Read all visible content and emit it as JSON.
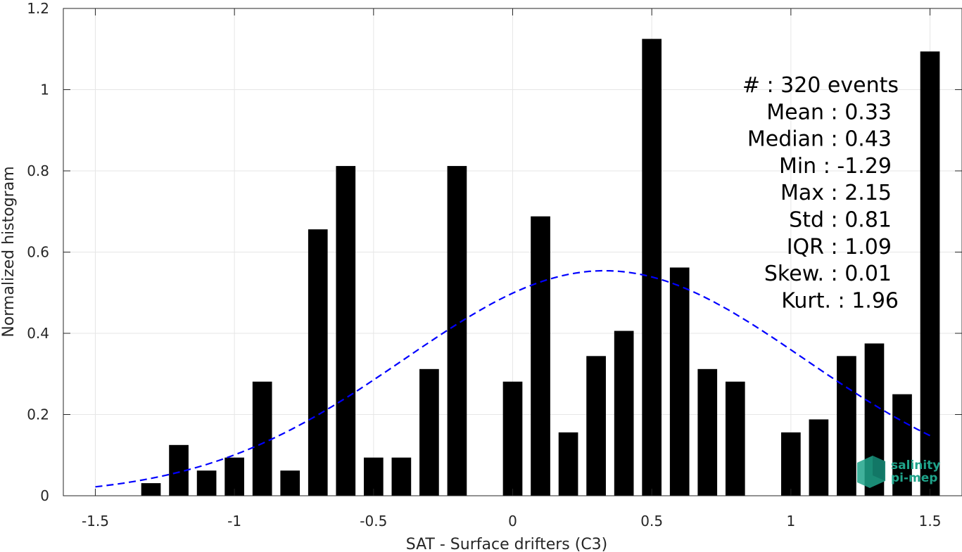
{
  "chart_data": {
    "type": "bar",
    "xlabel": "SAT - Surface drifters (C3)",
    "ylabel": "Normalized histogram",
    "xlim": [
      -1.615,
      1.615
    ],
    "ylim": [
      0,
      1.2
    ],
    "grid": true,
    "x_ticks": [
      -1.5,
      -1,
      -0.5,
      0,
      0.5,
      1,
      1.5
    ],
    "x_tick_labels": [
      "-1.5",
      "-1",
      "-0.5",
      "0",
      "0.5",
      "1",
      "1.5"
    ],
    "y_ticks": [
      0,
      0.2,
      0.4,
      0.6,
      0.8,
      1,
      1.2
    ],
    "y_tick_labels": [
      "0",
      "0.2",
      "0.4",
      "0.6",
      "0.8",
      "1",
      "1.2"
    ],
    "bar_width": 0.07,
    "x": [
      -1.3,
      -1.2,
      -1.1,
      -1.0,
      -0.9,
      -0.8,
      -0.7,
      -0.6,
      -0.5,
      -0.4,
      -0.3,
      -0.2,
      0.0,
      0.1,
      0.2,
      0.3,
      0.4,
      0.5,
      0.6,
      0.7,
      0.8,
      1.0,
      1.1,
      1.2,
      1.3,
      1.4,
      1.5
    ],
    "values": [
      0.031,
      0.125,
      0.062,
      0.094,
      0.281,
      0.062,
      0.656,
      0.812,
      0.094,
      0.094,
      0.312,
      0.812,
      0.281,
      0.688,
      0.156,
      0.344,
      0.406,
      1.125,
      0.562,
      0.312,
      0.281,
      0.156,
      0.188,
      0.344,
      0.375,
      0.25,
      1.094
    ],
    "bar_color": "#000000",
    "fit_curve": {
      "style": "dashed",
      "color": "#0000ff",
      "mean": 0.33,
      "std": 0.72,
      "x_range": [
        -1.5,
        1.5
      ]
    },
    "stats_lines": [
      "#  : 320 events",
      "Mean : 0.33",
      "Median : 0.43",
      "Min : -1.29",
      "Max : 2.15",
      "Std : 0.81",
      "IQR : 1.09",
      "Skew. : 0.01",
      "Kurt. : 1.96"
    ],
    "logo": {
      "line1": "salinity",
      "line2": "pi-mep",
      "color": "#1fa38a"
    }
  }
}
